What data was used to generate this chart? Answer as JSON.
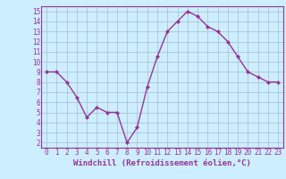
{
  "x": [
    0,
    1,
    2,
    3,
    4,
    5,
    6,
    7,
    8,
    9,
    10,
    11,
    12,
    13,
    14,
    15,
    16,
    17,
    18,
    19,
    20,
    21,
    22,
    23
  ],
  "y": [
    9,
    9,
    8,
    6.5,
    4.5,
    5.5,
    5,
    5,
    2,
    3.5,
    7.5,
    10.5,
    13,
    14,
    15,
    14.5,
    13.5,
    13,
    12,
    10.5,
    9,
    8.5,
    8,
    8
  ],
  "line_color": "#993399",
  "marker": "D",
  "marker_size": 2,
  "bg_color": "#cceeff",
  "grid_color": "#aabbcc",
  "xlabel": "Windchill (Refroidissement éolien,°C)",
  "xlabel_color": "#993399",
  "tick_color": "#993399",
  "spine_color": "#993399",
  "ylim_min": 1.5,
  "ylim_max": 15.5,
  "yticks": [
    2,
    3,
    4,
    5,
    6,
    7,
    8,
    9,
    10,
    11,
    12,
    13,
    14,
    15
  ],
  "xticks": [
    0,
    1,
    2,
    3,
    4,
    5,
    6,
    7,
    8,
    9,
    10,
    11,
    12,
    13,
    14,
    15,
    16,
    17,
    18,
    19,
    20,
    21,
    22,
    23
  ],
  "tick_fontsize": 5.5,
  "xlabel_fontsize": 6.5,
  "line_width": 1.0
}
